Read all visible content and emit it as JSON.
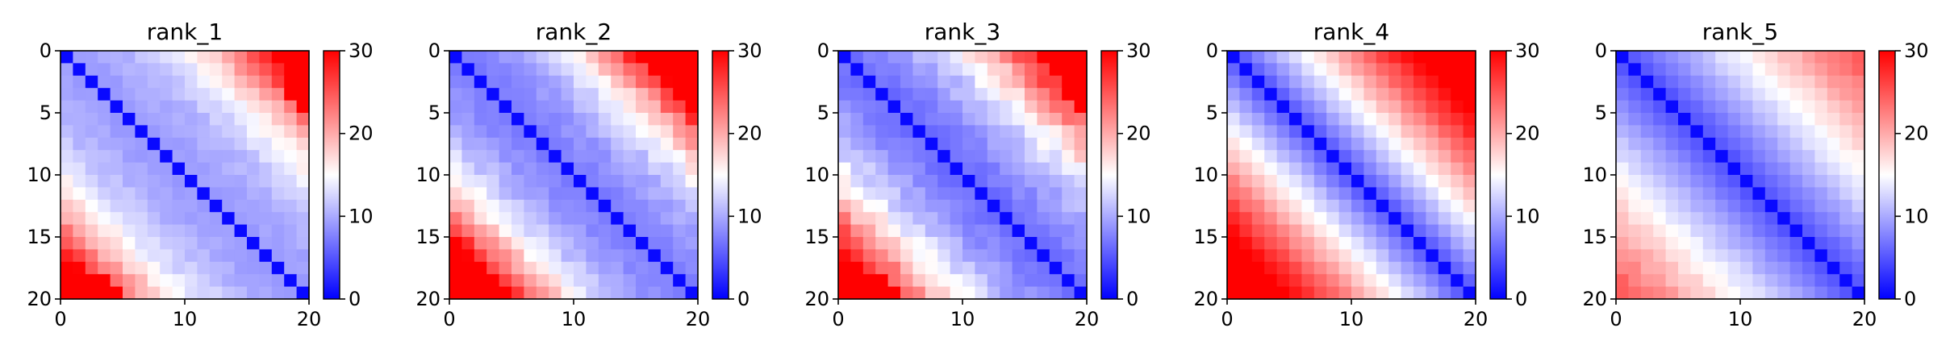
{
  "chart_data": [
    {
      "type": "heatmap",
      "title": "rank_1",
      "xlabel": "",
      "ylabel": "",
      "x_ticks": [
        0,
        10,
        20
      ],
      "y_ticks": [
        0,
        5,
        10,
        15,
        20
      ],
      "colorbar": {
        "ticks": [
          0,
          10,
          20,
          30
        ],
        "range": [
          0,
          30
        ],
        "colormap": "bwr"
      },
      "grid": false,
      "pattern": {
        "a": 9,
        "b": 0.2,
        "g": 0.004,
        "e": 0.4,
        "seed": 1
      }
    },
    {
      "type": "heatmap",
      "title": "rank_2",
      "xlabel": "",
      "ylabel": "",
      "x_ticks": [
        0,
        10,
        20
      ],
      "y_ticks": [
        0,
        5,
        10,
        15,
        20
      ],
      "colorbar": {
        "ticks": [
          0,
          10,
          20,
          30
        ],
        "range": [
          0,
          30
        ],
        "colormap": "bwr"
      },
      "grid": false,
      "pattern": {
        "a": 7,
        "b": 0.4,
        "g": 0.005,
        "e": 0.5,
        "seed": 2
      }
    },
    {
      "type": "heatmap",
      "title": "rank_3",
      "xlabel": "",
      "ylabel": "",
      "x_ticks": [
        0,
        10,
        20
      ],
      "y_ticks": [
        0,
        5,
        10,
        15,
        20
      ],
      "colorbar": {
        "ticks": [
          0,
          10,
          20,
          30
        ],
        "range": [
          0,
          30
        ],
        "colormap": "bwr"
      },
      "grid": false,
      "pattern": {
        "a": 6,
        "b": 0.55,
        "g": 0.004,
        "e": 0.6,
        "seed": 3
      }
    },
    {
      "type": "heatmap",
      "title": "rank_4",
      "xlabel": "",
      "ylabel": "",
      "x_ticks": [
        0,
        10,
        20
      ],
      "y_ticks": [
        0,
        5,
        10,
        15,
        20
      ],
      "colorbar": {
        "ticks": [
          0,
          10,
          20,
          30
        ],
        "range": [
          0,
          30
        ],
        "colormap": "bwr"
      },
      "grid": false,
      "pattern": {
        "a": 4,
        "b": 1.8,
        "g": 0,
        "e": 0.2,
        "seed": 4
      }
    },
    {
      "type": "heatmap",
      "title": "rank_5",
      "xlabel": "",
      "ylabel": "",
      "x_ticks": [
        0,
        10,
        20
      ],
      "y_ticks": [
        0,
        5,
        10,
        15,
        20
      ],
      "colorbar": {
        "ticks": [
          0,
          10,
          20,
          30
        ],
        "range": [
          0,
          30
        ],
        "colormap": "bwr"
      },
      "grid": false,
      "pattern": {
        "a": 4,
        "b": 1.1,
        "g": 0,
        "e": 0.2,
        "seed": 5
      }
    }
  ]
}
